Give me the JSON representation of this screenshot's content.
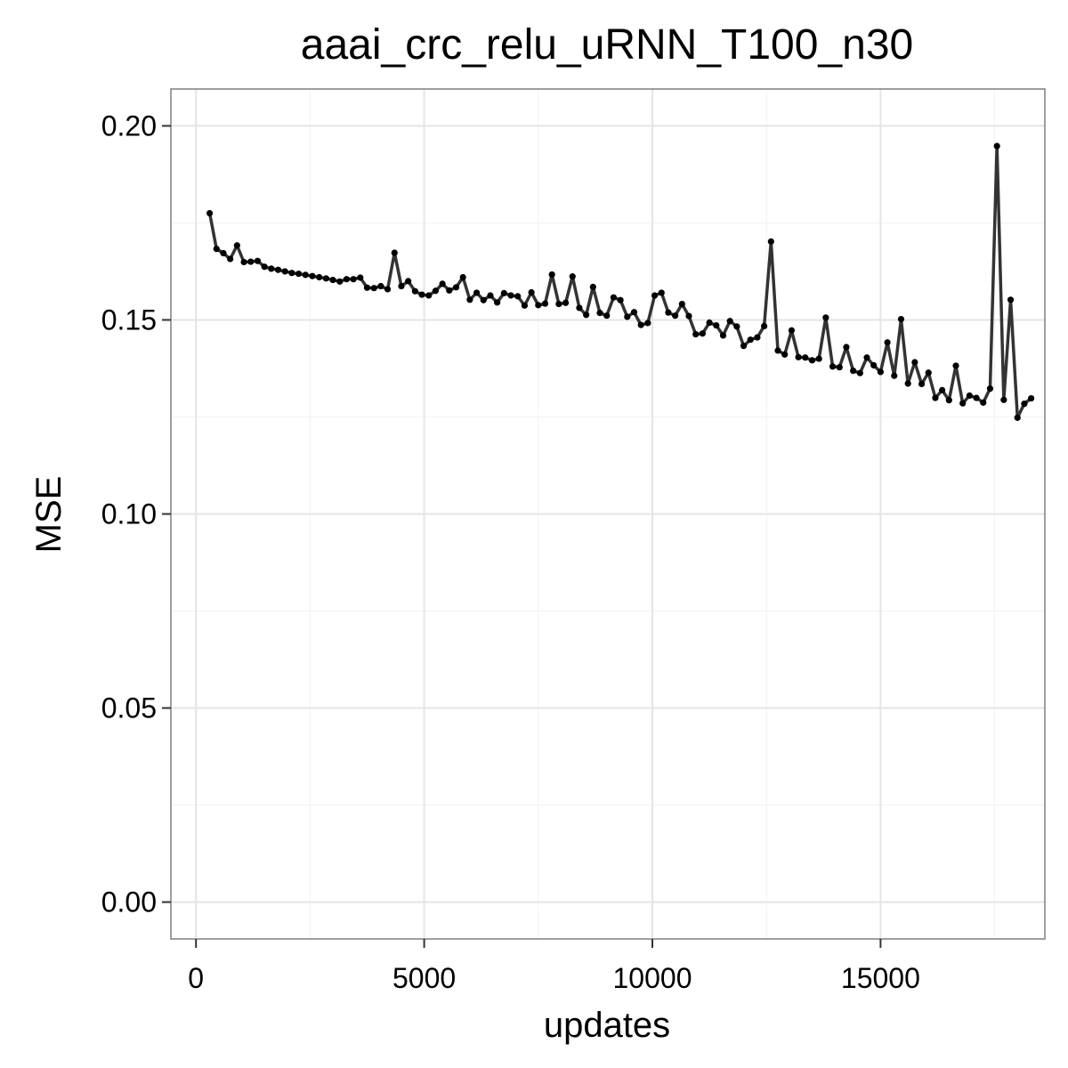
{
  "chart_data": {
    "type": "line",
    "title": "aaai_crc_relu_uRNN_T100_n30",
    "xlabel": "updates",
    "ylabel": "MSE",
    "xlim": [
      -550,
      18600
    ],
    "ylim": [
      -0.0095,
      0.2095
    ],
    "x_ticks": [
      0,
      5000,
      10000,
      15000
    ],
    "x_tick_labels": [
      "0",
      "5000",
      "10000",
      "15000"
    ],
    "x_minor": [
      2500,
      7500,
      12500,
      17500
    ],
    "y_ticks": [
      0.0,
      0.05,
      0.1,
      0.15,
      0.2
    ],
    "y_tick_labels": [
      "0.00",
      "0.05",
      "0.10",
      "0.15",
      "0.20"
    ],
    "y_minor": [
      0.025,
      0.075,
      0.125,
      0.175
    ],
    "grid": true,
    "legend": "none",
    "colors": {
      "line": "#333333",
      "point": "#000000",
      "border": "#7f7f7f",
      "grid": "#e5e5e5"
    },
    "series": [
      {
        "x_start": 300,
        "x_step": 150,
        "values": [
          0.1775,
          0.1683,
          0.1672,
          0.1657,
          0.1692,
          0.1649,
          0.165,
          0.1652,
          0.1637,
          0.1632,
          0.1629,
          0.1625,
          0.1621,
          0.1619,
          0.1616,
          0.1613,
          0.161,
          0.1607,
          0.1603,
          0.1599,
          0.1605,
          0.1605,
          0.1609,
          0.1583,
          0.1582,
          0.1587,
          0.1579,
          0.1673,
          0.1587,
          0.16,
          0.1574,
          0.1565,
          0.1563,
          0.1575,
          0.1593,
          0.1576,
          0.1584,
          0.161,
          0.1552,
          0.157,
          0.1551,
          0.1563,
          0.1545,
          0.1569,
          0.1563,
          0.1561,
          0.1537,
          0.1571,
          0.1538,
          0.1542,
          0.1617,
          0.1541,
          0.1544,
          0.1612,
          0.1531,
          0.1513,
          0.1585,
          0.1518,
          0.1511,
          0.1558,
          0.1551,
          0.1508,
          0.152,
          0.1487,
          0.1492,
          0.1563,
          0.157,
          0.1519,
          0.1511,
          0.1541,
          0.151,
          0.1463,
          0.1465,
          0.1493,
          0.1486,
          0.146,
          0.1497,
          0.1483,
          0.1433,
          0.1449,
          0.1455,
          0.1484,
          0.1702,
          0.1421,
          0.1411,
          0.1473,
          0.1404,
          0.1403,
          0.1396,
          0.14,
          0.1506,
          0.138,
          0.1378,
          0.143,
          0.1369,
          0.1363,
          0.1403,
          0.1383,
          0.1366,
          0.1442,
          0.1356,
          0.1502,
          0.1336,
          0.1391,
          0.1335,
          0.1364,
          0.1299,
          0.1319,
          0.1293,
          0.1382,
          0.1285,
          0.1305,
          0.1299,
          0.1287,
          0.1323,
          0.1948,
          0.1294,
          0.1552,
          0.1248,
          0.1284,
          0.1298
        ]
      }
    ]
  }
}
